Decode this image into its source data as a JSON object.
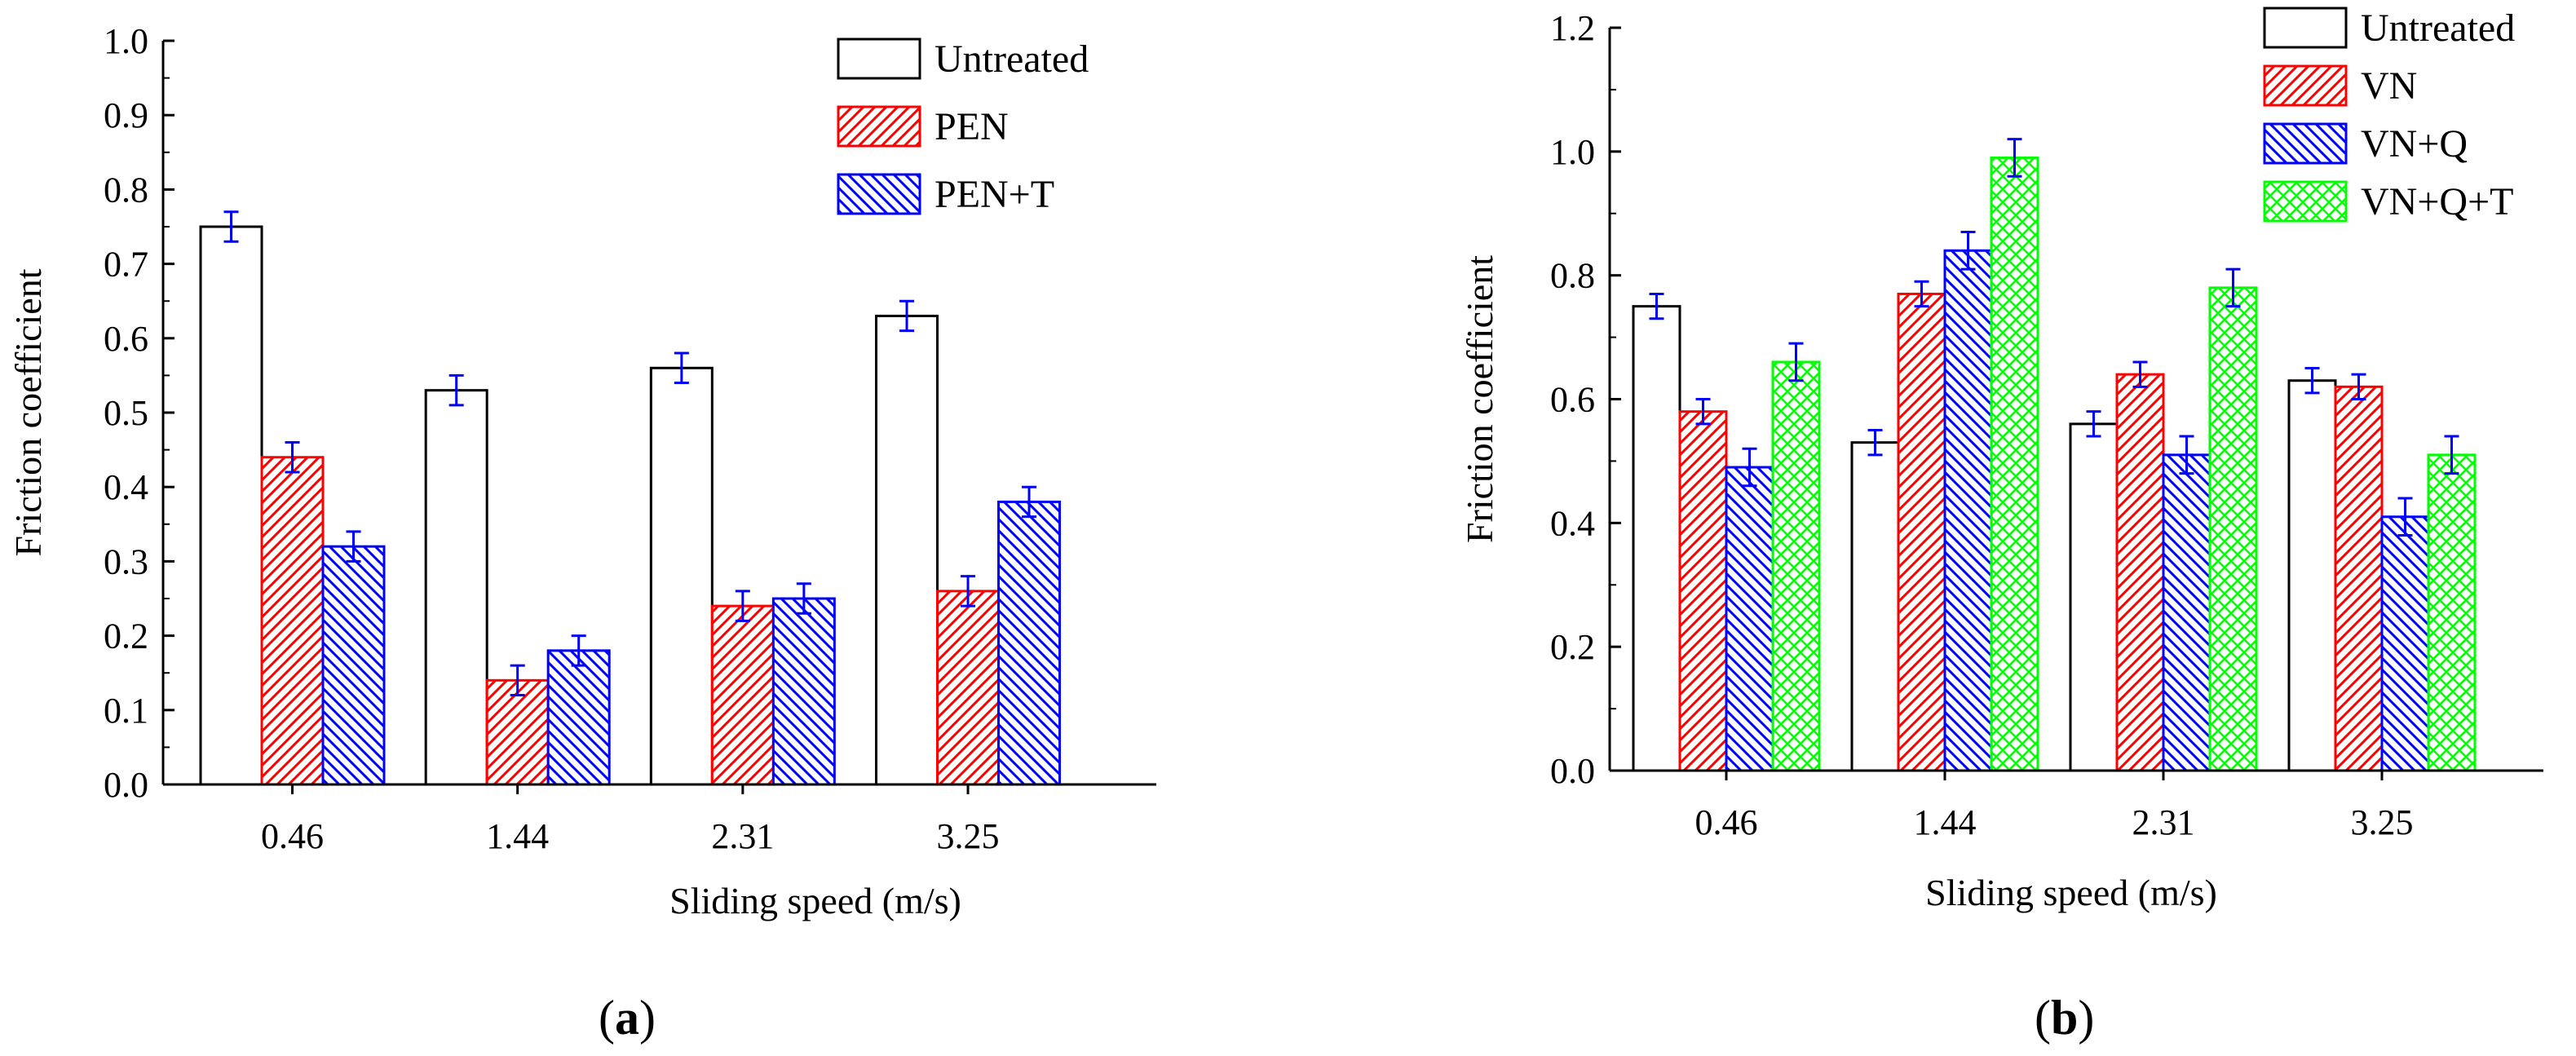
{
  "chart_data": [
    {
      "type": "bar",
      "panel_label": "a",
      "categories": [
        "0.46",
        "1.44",
        "2.31",
        "3.25"
      ],
      "series": [
        {
          "name": "Untreated",
          "values": [
            0.75,
            0.53,
            0.56,
            0.63
          ],
          "errors": [
            0.02,
            0.02,
            0.02,
            0.02
          ],
          "color": "#000000",
          "pattern": "none"
        },
        {
          "name": "PEN",
          "values": [
            0.44,
            0.14,
            0.24,
            0.26
          ],
          "errors": [
            0.02,
            0.02,
            0.02,
            0.02
          ],
          "color": "#ff0000",
          "pattern": "diagonal-up"
        },
        {
          "name": "PEN+T",
          "values": [
            0.32,
            0.18,
            0.25,
            0.38
          ],
          "errors": [
            0.02,
            0.02,
            0.02,
            0.02
          ],
          "color": "#0000ff",
          "pattern": "diagonal-down"
        }
      ],
      "xlabel": "Sliding speed (m/s)",
      "ylabel": "Friction coefficient",
      "ylim": [
        0,
        1.0
      ],
      "yticks": [
        "0.0",
        "0.1",
        "0.2",
        "0.3",
        "0.4",
        "0.5",
        "0.6",
        "0.7",
        "0.8",
        "0.9",
        "1.0"
      ],
      "error_bar_color": "#0000ff",
      "grid": false,
      "legend_position": "top-right"
    },
    {
      "type": "bar",
      "panel_label": "b",
      "categories": [
        "0.46",
        "1.44",
        "2.31",
        "3.25"
      ],
      "series": [
        {
          "name": "Untreated",
          "values": [
            0.75,
            0.53,
            0.56,
            0.63
          ],
          "errors": [
            0.02,
            0.02,
            0.02,
            0.02
          ],
          "color": "#000000",
          "pattern": "none"
        },
        {
          "name": "VN",
          "values": [
            0.58,
            0.77,
            0.64,
            0.62
          ],
          "errors": [
            0.02,
            0.02,
            0.02,
            0.02
          ],
          "color": "#ff0000",
          "pattern": "diagonal-up"
        },
        {
          "name": "VN+Q",
          "values": [
            0.49,
            0.84,
            0.51,
            0.41
          ],
          "errors": [
            0.03,
            0.03,
            0.03,
            0.03
          ],
          "color": "#0000ff",
          "pattern": "diagonal-down"
        },
        {
          "name": "VN+Q+T",
          "values": [
            0.66,
            0.99,
            0.78,
            0.51
          ],
          "errors": [
            0.03,
            0.03,
            0.03,
            0.03
          ],
          "color": "#00ff00",
          "pattern": "crosshatch"
        }
      ],
      "xlabel": "Sliding speed (m/s)",
      "ylabel": "Friction coefficient",
      "ylim": [
        0,
        1.2
      ],
      "yticks": [
        "0.0",
        "0.2",
        "0.4",
        "0.6",
        "0.8",
        "1.0",
        "1.2"
      ],
      "error_bar_color": "#0000ff",
      "grid": false,
      "legend_position": "top-right"
    }
  ]
}
